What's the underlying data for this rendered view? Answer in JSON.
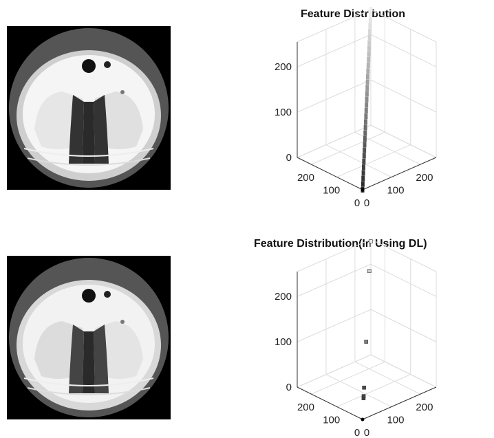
{
  "images": [
    {
      "name": "ct-scan-original"
    },
    {
      "name": "ct-scan-processed"
    }
  ],
  "chart_data": [
    {
      "type": "scatter3d",
      "title": "Feature Distribution",
      "xlim": [
        0,
        255
      ],
      "ylim": [
        0,
        255
      ],
      "zlim": [
        0,
        255
      ],
      "x_ticks": [
        "0",
        "100",
        "200"
      ],
      "y_ticks": [
        "0",
        "100",
        "200"
      ],
      "z_ticks": [
        "0",
        "100",
        "200"
      ],
      "grid": true,
      "colormap": "gray",
      "points": [
        [
          0,
          0,
          0
        ],
        [
          8,
          8,
          8
        ],
        [
          16,
          16,
          16
        ],
        [
          24,
          24,
          24
        ],
        [
          32,
          32,
          32
        ],
        [
          40,
          40,
          40
        ],
        [
          48,
          48,
          48
        ],
        [
          56,
          56,
          56
        ],
        [
          64,
          64,
          64
        ],
        [
          72,
          72,
          72
        ],
        [
          80,
          80,
          80
        ],
        [
          88,
          88,
          88
        ],
        [
          96,
          96,
          96
        ],
        [
          104,
          104,
          104
        ],
        [
          112,
          112,
          112
        ],
        [
          120,
          120,
          120
        ],
        [
          128,
          128,
          128
        ],
        [
          136,
          136,
          136
        ],
        [
          144,
          144,
          144
        ],
        [
          152,
          152,
          152
        ],
        [
          160,
          160,
          160
        ],
        [
          168,
          168,
          168
        ],
        [
          176,
          176,
          176
        ],
        [
          184,
          184,
          184
        ],
        [
          192,
          192,
          192
        ],
        [
          200,
          200,
          200
        ],
        [
          208,
          208,
          208
        ],
        [
          216,
          216,
          216
        ],
        [
          224,
          224,
          224
        ],
        [
          232,
          232,
          232
        ],
        [
          240,
          240,
          240
        ],
        [
          248,
          248,
          248
        ],
        [
          255,
          255,
          255
        ]
      ]
    },
    {
      "type": "scatter3d",
      "title": "Feature Distribution(In Using DL)",
      "xlim": [
        0,
        255
      ],
      "ylim": [
        0,
        255
      ],
      "zlim": [
        0,
        255
      ],
      "x_ticks": [
        "0",
        "100",
        "200"
      ],
      "y_ticks": [
        "0",
        "100",
        "200"
      ],
      "z_ticks": [
        "0",
        "100",
        "200"
      ],
      "grid": true,
      "colormap": "gray",
      "points": [
        [
          30,
          30,
          30
        ],
        [
          33,
          33,
          33
        ],
        [
          45,
          45,
          45
        ],
        [
          110,
          110,
          110
        ],
        [
          210,
          210,
          210
        ],
        [
          252,
          252,
          252
        ]
      ]
    }
  ]
}
